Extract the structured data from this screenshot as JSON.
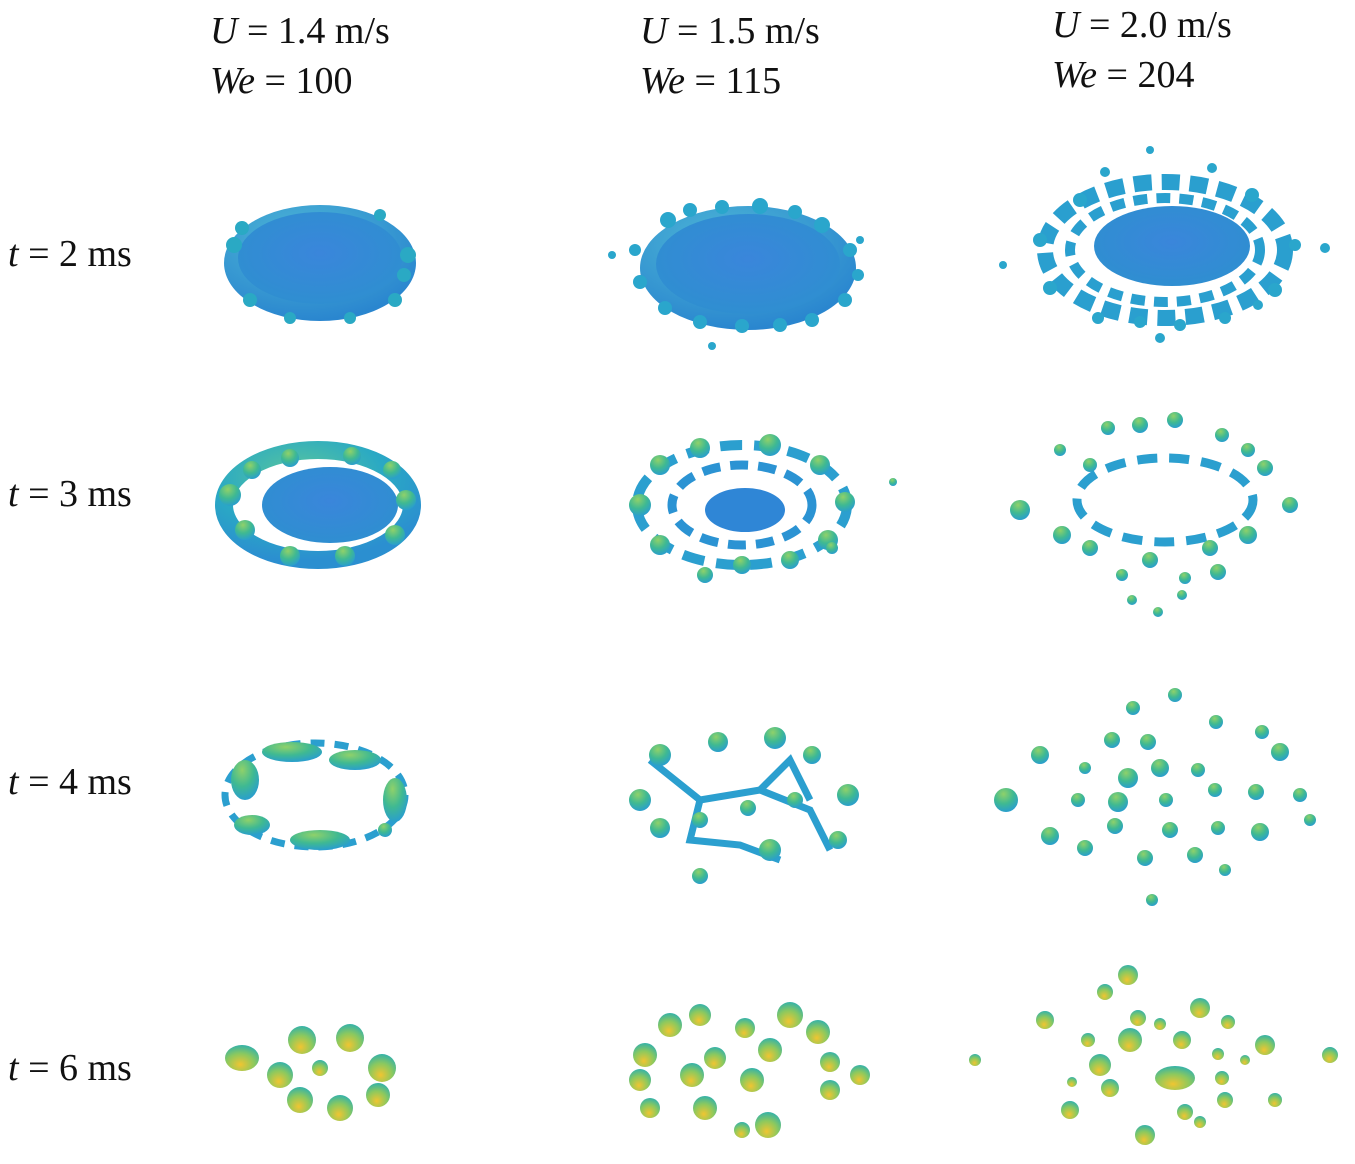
{
  "columns": [
    {
      "u_label": "U",
      "u_value": "= 1.4 m/s",
      "we_label": "We",
      "we_value": "= 100"
    },
    {
      "u_label": "U",
      "u_value": "= 1.5 m/s",
      "we_label": "We",
      "we_value": "= 115"
    },
    {
      "u_label": "U",
      "u_value": "= 2.0 m/s",
      "we_label": "We",
      "we_value": "= 204"
    }
  ],
  "rows": [
    {
      "t_label": "t",
      "t_value": "= 2 ms"
    },
    {
      "t_label": "t",
      "t_value": "= 3 ms"
    },
    {
      "t_label": "t",
      "t_value": "= 4 ms"
    },
    {
      "t_label": "t",
      "t_value": "= 6 ms"
    }
  ],
  "colors": {
    "sheet_blue": "#2f7fd6",
    "rim_cyan": "#25a6c9",
    "drop_green": "#3fb98a",
    "drop_yellow": "#e8c23a"
  }
}
